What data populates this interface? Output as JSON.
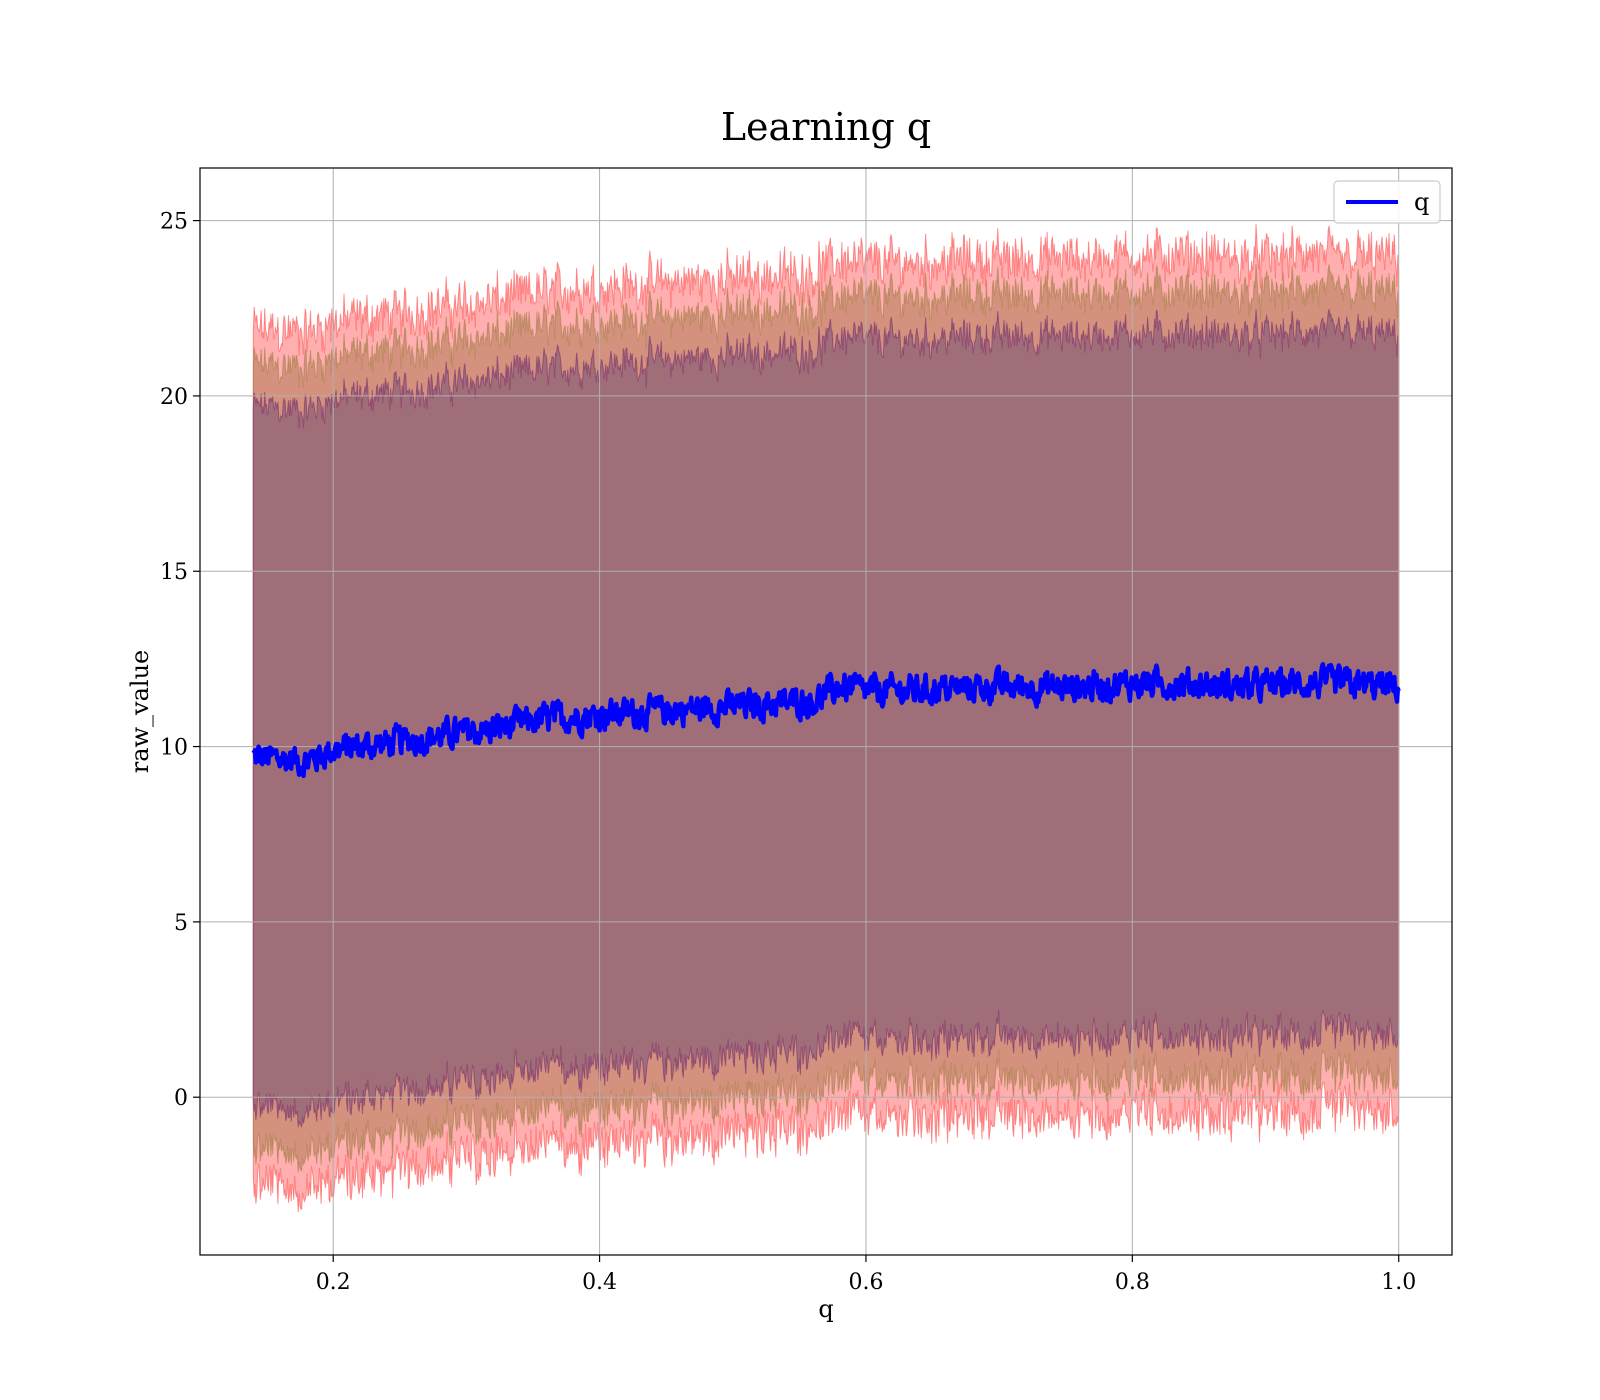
{
  "chart_data": {
    "type": "area",
    "title": "Learning q",
    "xlabel": "q",
    "ylabel": "raw_value",
    "xlim": [
      0.1,
      1.04
    ],
    "ylim": [
      -4.5,
      26.5
    ],
    "x_ticks": [
      "0.2",
      "0.4",
      "0.6",
      "0.8",
      "1.0"
    ],
    "x_tick_values": [
      0.2,
      0.4,
      0.6,
      0.8,
      1.0
    ],
    "y_ticks": [
      "0",
      "5",
      "10",
      "15",
      "20",
      "25"
    ],
    "y_tick_values": [
      0,
      5,
      10,
      15,
      20,
      25
    ],
    "grid": true,
    "legend": {
      "placement": "top-right",
      "entries": [
        "q"
      ]
    },
    "colors": {
      "line": "#0000ff",
      "band_outer": "#ff4d4d",
      "band_inner": "#7a2e6e",
      "fill": "#a06e78"
    },
    "x_range": [
      0.14,
      1.0
    ],
    "series": [
      {
        "name": "q",
        "role": "mean",
        "x": [
          0.14,
          0.18,
          0.2,
          0.24,
          0.28,
          0.32,
          0.36,
          0.4,
          0.44,
          0.48,
          0.52,
          0.56,
          0.58,
          0.6,
          0.64,
          0.68,
          0.72,
          0.76,
          0.8,
          0.84,
          0.88,
          0.92,
          0.96,
          1.0
        ],
        "values": [
          9.7,
          9.6,
          9.9,
          10.1,
          10.3,
          10.5,
          10.8,
          10.9,
          11.0,
          11.1,
          11.2,
          11.3,
          11.7,
          11.6,
          11.6,
          11.7,
          11.7,
          11.7,
          11.8,
          11.8,
          11.7,
          11.8,
          11.8,
          11.7
        ]
      }
    ],
    "bands": [
      {
        "role": "outer",
        "lower_offset": -12.2,
        "upper_offset": 12.2
      },
      {
        "role": "middle",
        "lower_offset": -11.2,
        "upper_offset": 11.2
      },
      {
        "role": "inner",
        "lower_offset": -10.0,
        "upper_offset": 10.0
      }
    ]
  }
}
